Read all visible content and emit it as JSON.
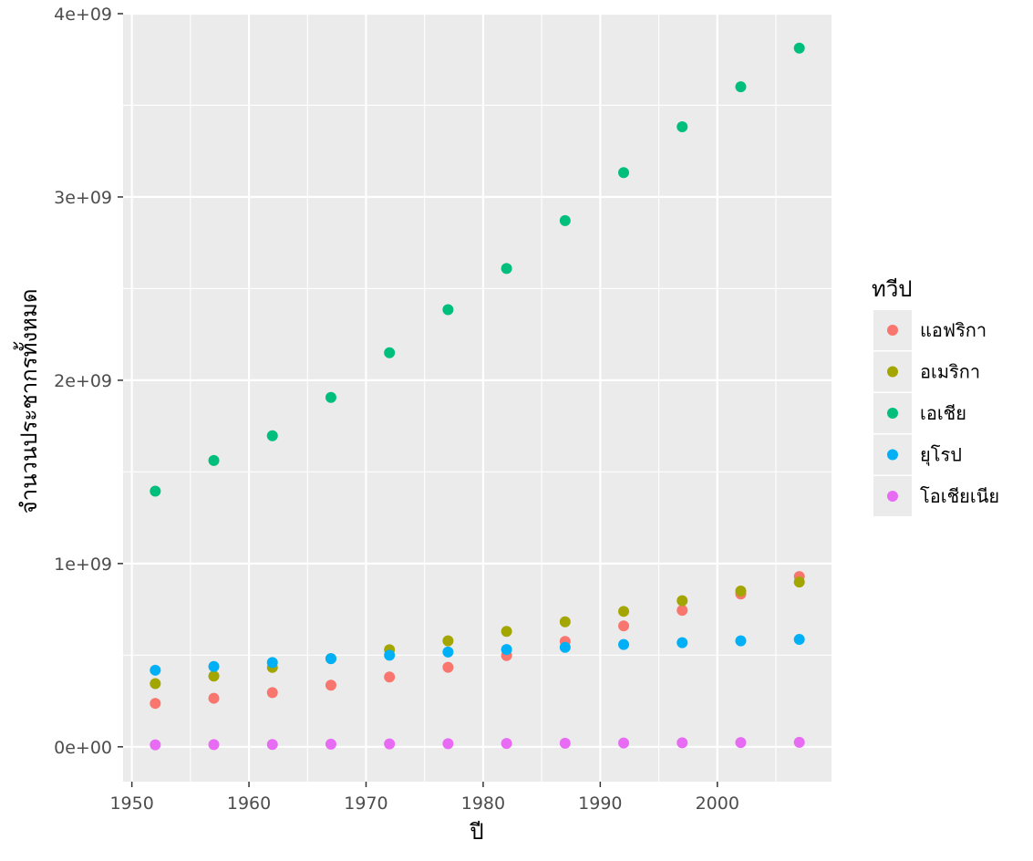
{
  "chart_data": {
    "type": "scatter",
    "xlabel": "ปี",
    "ylabel": "จำนวนประชากรทั้งหมด",
    "xlim": [
      1949.25,
      2009.75
    ],
    "ylim": [
      -190000000,
      4000000000
    ],
    "x_ticks": [
      1950,
      1960,
      1970,
      1980,
      1990,
      2000
    ],
    "y_ticks": [
      {
        "value": 0,
        "label": "0e+00"
      },
      {
        "value": 1000000000,
        "label": "1e+09"
      },
      {
        "value": 2000000000,
        "label": "2e+09"
      },
      {
        "value": 3000000000,
        "label": "3e+09"
      },
      {
        "value": 4000000000,
        "label": "4e+09"
      }
    ],
    "grid": true,
    "legend_title": "ทวีป",
    "legend_position": "right",
    "x": [
      1952,
      1957,
      1962,
      1967,
      1972,
      1977,
      1982,
      1987,
      1992,
      1997,
      2002,
      2007
    ],
    "series": [
      {
        "name": "แอฟริกา",
        "color": "#F8766D",
        "values": [
          237000000,
          265000000,
          296000000,
          336000000,
          381000000,
          434000000,
          498000000,
          575000000,
          660000000,
          745000000,
          834000000,
          929000000
        ]
      },
      {
        "name": "อเมริกา",
        "color": "#A3A500",
        "values": [
          345000000,
          386000000,
          433000000,
          481000000,
          530000000,
          578000000,
          630000000,
          682000000,
          739000000,
          797000000,
          850000000,
          899000000
        ]
      },
      {
        "name": "เอเชีย",
        "color": "#00BF7D",
        "values": [
          1395000000,
          1562000000,
          1697000000,
          1906000000,
          2150000000,
          2385000000,
          2610000000,
          2871000000,
          3133000000,
          3383000000,
          3601000000,
          3812000000
        ]
      },
      {
        "name": "ยุโรป",
        "color": "#00B0F6",
        "values": [
          418000000,
          438000000,
          460000000,
          481000000,
          500000000,
          517000000,
          531000000,
          543000000,
          558000000,
          568000000,
          578000000,
          586000000
        ]
      },
      {
        "name": "โอเชียเนีย",
        "color": "#E76BF3",
        "values": [
          10700000,
          11900000,
          13000000,
          14500000,
          16100000,
          17300000,
          18400000,
          19600000,
          20900000,
          22200000,
          23400000,
          24500000
        ]
      }
    ]
  }
}
